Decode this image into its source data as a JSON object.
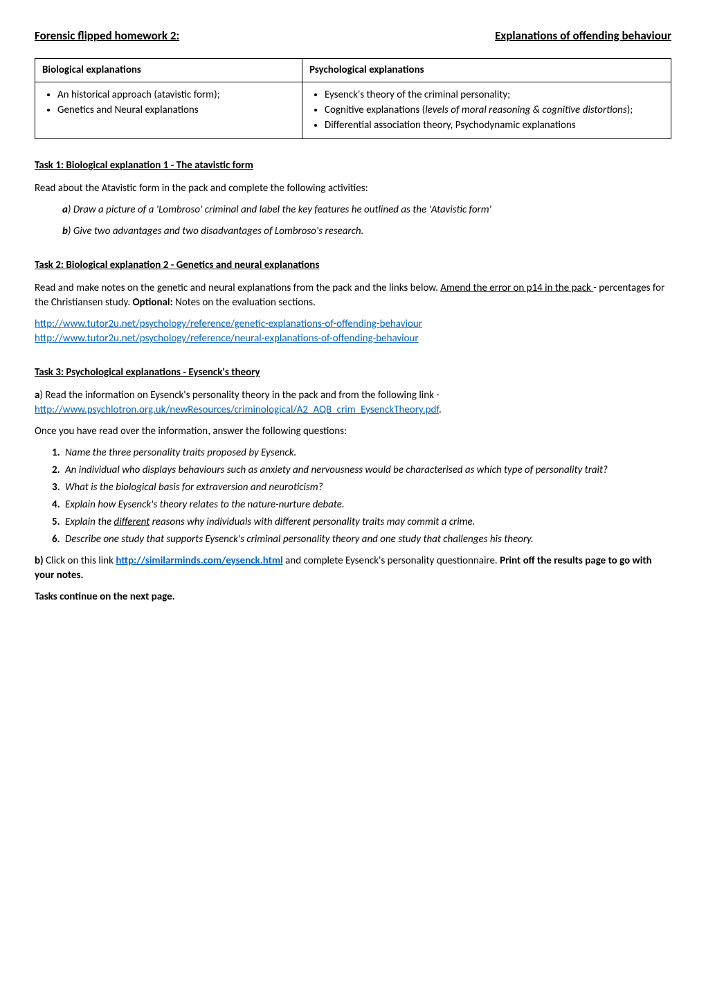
{
  "header": {
    "left": "Forensic flipped homework 2:",
    "right": "Explanations of offending behaviour"
  },
  "table": {
    "col1_header": "Biological explanations",
    "col2_header": "Psychological explanations",
    "col1_items": [
      "An historical approach (atavistic form);",
      "Genetics and Neural explanations"
    ],
    "col2_item1": "Eysenck's theory of the criminal personality;",
    "col2_item2_pre": "Cognitive explanations (",
    "col2_item2_italic": "levels of moral reasoning & cognitive distortions",
    "col2_item2_post": ");",
    "col2_item3": "Differential association theory, Psychodynamic explanations"
  },
  "task1": {
    "title": "Task 1: Biological explanation 1 - The atavistic form",
    "intro": "Read about the Atavistic form in the pack and complete the following activities:",
    "a_bold": "a",
    "a_text": ") Draw a picture of a 'Lombroso' criminal and label the key features he outlined as the 'Atavistic form'",
    "b_bold": "b",
    "b_text": ") Give two advantages and two disadvantages of Lombroso's research."
  },
  "task2": {
    "title": "Task 2: Biological explanation 2 - Genetics and neural explanations",
    "intro_pre": "Read and make notes on the genetic and neural explanations from the pack and the links below. ",
    "intro_underline": "Amend the error on p14 in the pack ",
    "intro_mid": "- percentages for the Christiansen study. ",
    "intro_bold": "Optional:",
    "intro_post": " Notes on the evaluation sections.",
    "link1": "http://www.tutor2u.net/psychology/reference/genetic-explanations-of-offending-behaviour",
    "link2": "http://www.tutor2u.net/psychology/reference/neural-explanations-of-offending-behaviour"
  },
  "task3": {
    "title": "Task 3: Psychological explanations - Eysenck's theory",
    "a_bold": "a",
    "a_text": ") Read the information on Eysenck's personality theory in the pack and from the following link - ",
    "a_link": "http://www.psychlotron.org.uk/newResources/criminological/A2_AQB_crim_EysenckTheory.pdf",
    "a_post": ".",
    "q_intro": "Once you have read over the information, answer the following questions:",
    "q1": "Name the three personality traits proposed by Eysenck.",
    "q2": "An individual who displays behaviours such as anxiety and nervousness would be characterised as which type of personality trait?",
    "q3": "What is the biological basis for extraversion and neuroticism?",
    "q4": "Explain how Eysenck's theory relates to the nature-nurture debate.",
    "q5_pre": "Explain the ",
    "q5_underline": "different",
    "q5_post": " reasons why individuals with different personality traits may commit a crime.",
    "q6": "Describe one study that supports Eysenck's criminal personality theory and one study that challenges his theory.",
    "b_bold": "b)",
    "b_pre": " Click on this link ",
    "b_link": "http://similarminds.com/eysenck.html",
    "b_post": " and complete Eysenck's personality questionnaire. ",
    "b_bold2": "Print off the results page to go with your notes.",
    "continue": "Tasks continue on the next page."
  }
}
